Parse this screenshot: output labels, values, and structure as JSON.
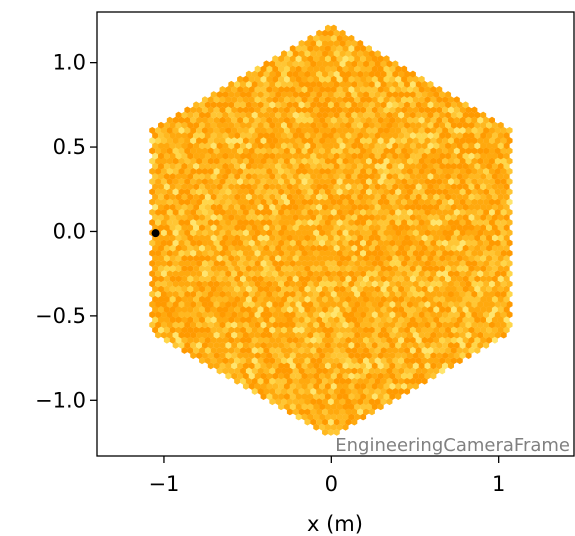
{
  "chart_data": {
    "type": "scatter",
    "title": "",
    "xlabel": "x  (m)",
    "ylabel": "",
    "xlim": [
      -1.4,
      1.45
    ],
    "ylim": [
      -1.33,
      1.3
    ],
    "x_ticks": [
      {
        "value": -1,
        "label": "−1"
      },
      {
        "value": 0,
        "label": "0"
      },
      {
        "value": 1,
        "label": "1"
      }
    ],
    "y_ticks": [
      {
        "value": 1.0,
        "label": "1.0"
      },
      {
        "value": 0.5,
        "label": "0.5"
      },
      {
        "value": 0.0,
        "label": "0.0"
      },
      {
        "value": -0.5,
        "label": "−0.5"
      },
      {
        "value": -1.0,
        "label": "−1.0"
      }
    ],
    "camera": {
      "shape": "hexagon",
      "center": [
        0,
        0
      ],
      "flat_half_width": 1.07,
      "corner_radius": 1.22,
      "pixel_pitch": 0.035,
      "colormap": [
        "#ff9a00",
        "#ffa90e",
        "#ffb820",
        "#ffc634",
        "#ffd64a",
        "#ffe56e"
      ],
      "value_range": [
        0.0,
        1.0
      ]
    },
    "marked_point": {
      "x": -1.05,
      "y": -0.01,
      "color": "#000000"
    },
    "frame_name": "EngineeringCameraFrame",
    "frame_color": "#808080",
    "grid": false,
    "legend": "none"
  }
}
